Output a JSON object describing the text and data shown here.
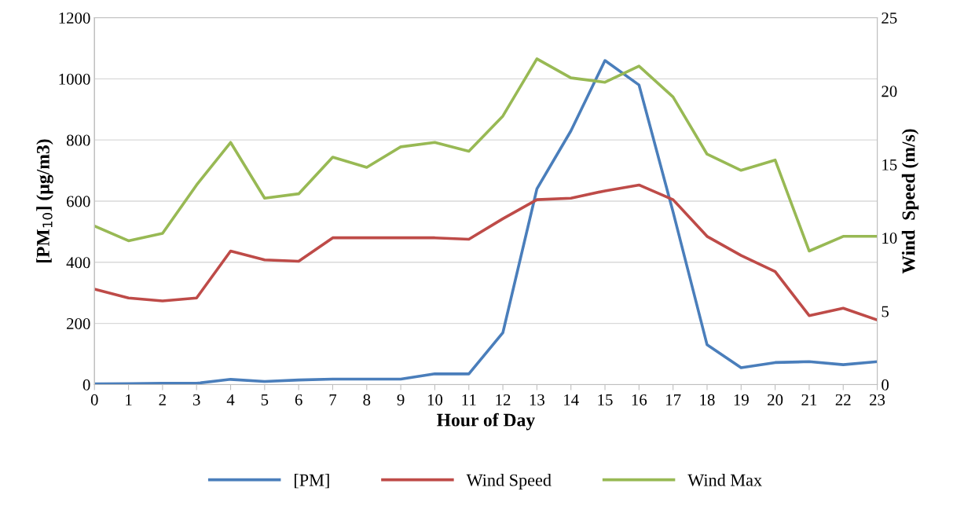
{
  "chart_data": {
    "type": "line",
    "xlabel": "Hour of Day",
    "ylabel": "[PM$_{10}$] (µg/m3)",
    "y2label": "Wind  Speed (m/s)",
    "x": [
      0,
      1,
      2,
      3,
      4,
      5,
      6,
      7,
      8,
      9,
      10,
      11,
      12,
      13,
      14,
      15,
      16,
      17,
      18,
      19,
      20,
      21,
      22,
      23
    ],
    "xlim": [
      0,
      23
    ],
    "xticks": [
      0,
      1,
      2,
      3,
      4,
      5,
      6,
      7,
      8,
      9,
      10,
      11,
      12,
      13,
      14,
      15,
      16,
      17,
      18,
      19,
      20,
      21,
      22,
      23
    ],
    "ylim": [
      0,
      1200
    ],
    "yticks": [
      0,
      200,
      400,
      600,
      800,
      1000,
      1200
    ],
    "y2lim": [
      0,
      25
    ],
    "y2ticks": [
      0,
      5,
      10,
      15,
      20,
      25
    ],
    "grid": "y",
    "legend": "bottom",
    "marker": "none",
    "line_style": "solid",
    "series": [
      {
        "name": "[PM]",
        "color": "#4a7ebb",
        "values": [
          2,
          3,
          4,
          4,
          17,
          10,
          15,
          18,
          18,
          18,
          35,
          35,
          170,
          640,
          830,
          1060,
          980,
          565,
          130,
          55,
          72,
          75,
          65,
          75
        ]
      },
      {
        "name": "Wind Speed",
        "color": "#be4b48",
        "axis": "y2",
        "values": [
          6.5,
          5.9,
          5.7,
          5.9,
          9.1,
          8.5,
          8.4,
          10.0,
          10.0,
          10.0,
          10.0,
          9.9,
          11.3,
          12.6,
          12.7,
          13.2,
          13.6,
          12.6,
          10.1,
          8.8,
          7.7,
          4.7,
          5.2,
          4.4
        ]
      },
      {
        "name": "Wind Max",
        "color": "#98b954",
        "axis": "y2",
        "values": [
          10.8,
          9.8,
          10.3,
          13.6,
          16.5,
          12.7,
          13.0,
          15.5,
          14.8,
          16.2,
          16.5,
          15.9,
          18.3,
          22.2,
          20.9,
          20.6,
          21.7,
          19.6,
          15.7,
          14.6,
          15.3,
          9.1,
          10.1,
          10.1
        ]
      }
    ]
  }
}
